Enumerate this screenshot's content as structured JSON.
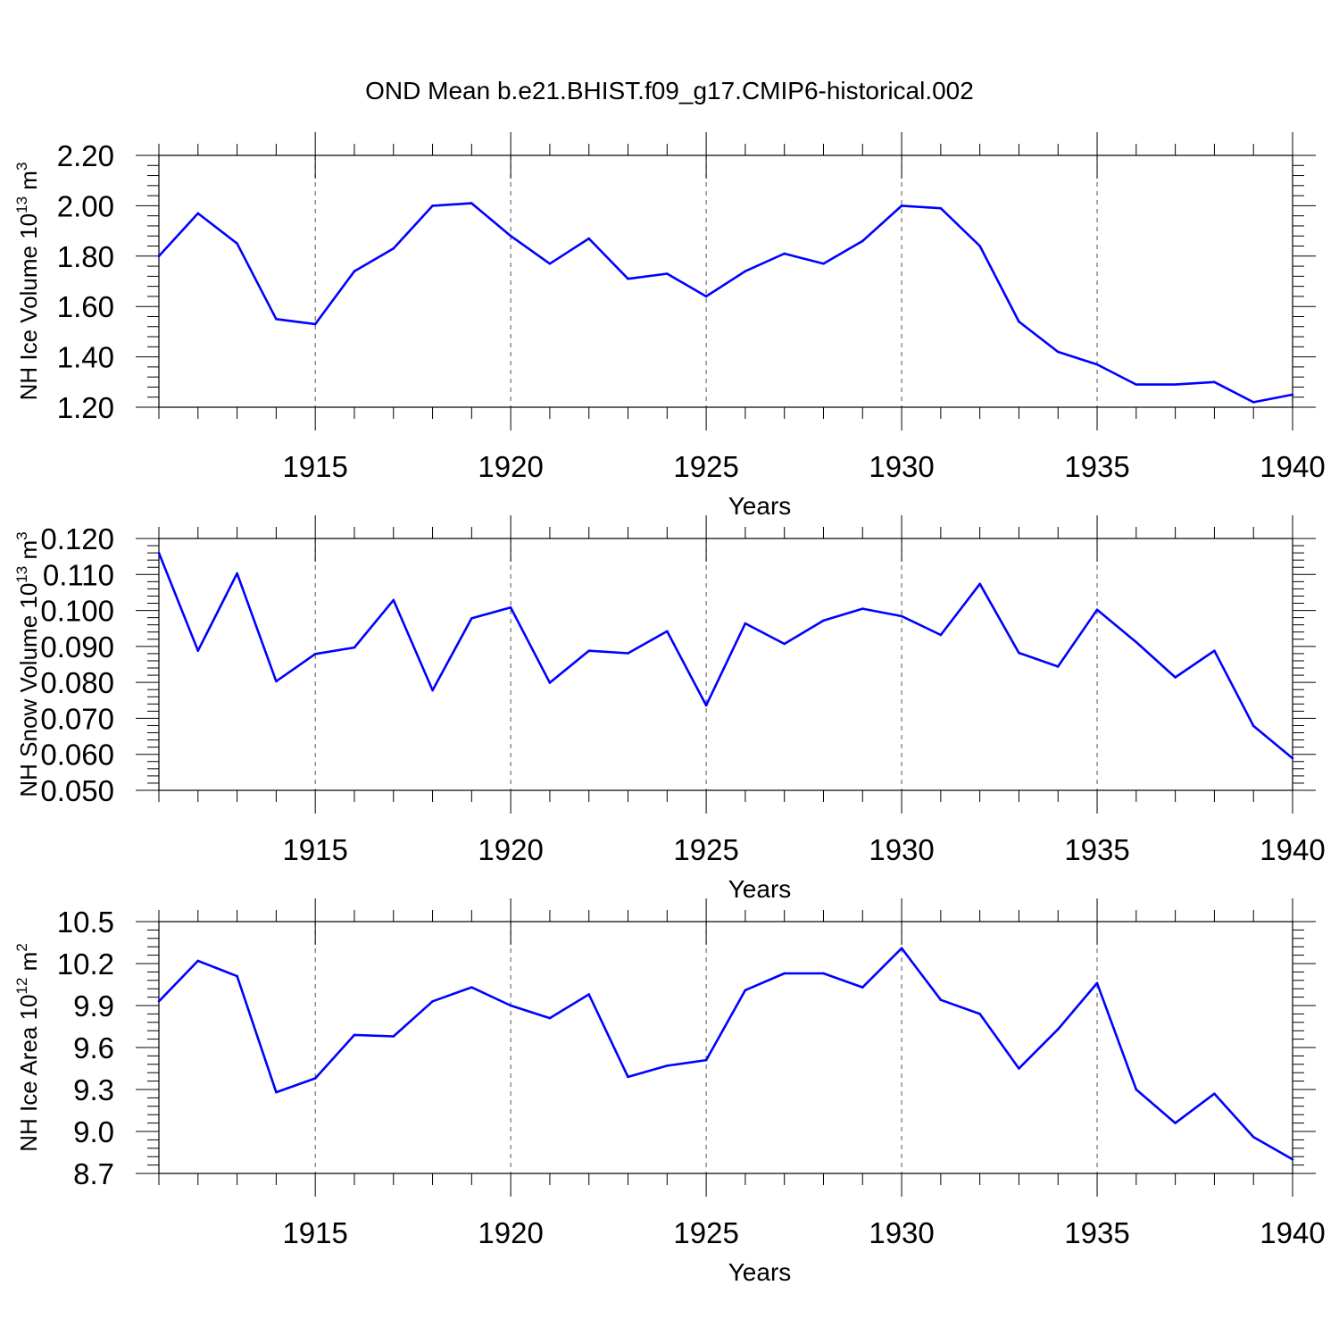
{
  "title": "OND Mean b.e21.BHIST.f09_g17.CMIP6-historical.002",
  "line_color": "#0000ff",
  "chart_data": [
    {
      "type": "line",
      "ylabel": "NH Ice Volume 10",
      "ylabel_exp": "13",
      "ylabel_unit": " m",
      "ylabel_unit_exp": "3",
      "xlabel": "Years",
      "xlim": [
        1911,
        1940
      ],
      "ylim": [
        1.2,
        2.2
      ],
      "yticks": [
        "1.20",
        "1.40",
        "1.60",
        "1.80",
        "2.00",
        "2.20"
      ],
      "xticks": [
        "1915",
        "1920",
        "1925",
        "1930",
        "1935",
        "1940"
      ],
      "x": [
        1911,
        1912,
        1913,
        1914,
        1915,
        1916,
        1917,
        1918,
        1919,
        1920,
        1921,
        1922,
        1923,
        1924,
        1925,
        1926,
        1927,
        1928,
        1929,
        1930,
        1931,
        1932,
        1933,
        1934,
        1935,
        1936,
        1937,
        1938,
        1939,
        1940
      ],
      "values": [
        1.8,
        1.97,
        1.85,
        1.55,
        1.53,
        1.74,
        1.83,
        2.0,
        2.01,
        1.88,
        1.77,
        1.87,
        1.71,
        1.73,
        1.64,
        1.74,
        1.81,
        1.77,
        1.86,
        2.0,
        1.99,
        1.84,
        1.54,
        1.42,
        1.37,
        1.29,
        1.29,
        1.3,
        1.22,
        1.25
      ]
    },
    {
      "type": "line",
      "ylabel": "NH Snow Volume 10",
      "ylabel_exp": "13",
      "ylabel_unit": " m",
      "ylabel_unit_exp": "3",
      "xlabel": "Years",
      "xlim": [
        1911,
        1940
      ],
      "ylim": [
        0.05,
        0.12
      ],
      "yticks": [
        "0.050",
        "0.060",
        "0.070",
        "0.080",
        "0.090",
        "0.100",
        "0.110",
        "0.120"
      ],
      "xticks": [
        "1915",
        "1920",
        "1925",
        "1930",
        "1935",
        "1940"
      ],
      "x": [
        1911,
        1912,
        1913,
        1914,
        1915,
        1916,
        1917,
        1918,
        1919,
        1920,
        1921,
        1922,
        1923,
        1924,
        1925,
        1926,
        1927,
        1928,
        1929,
        1930,
        1931,
        1932,
        1933,
        1934,
        1935,
        1936,
        1937,
        1938,
        1939,
        1940
      ],
      "values": [
        0.116,
        0.0888,
        0.1103,
        0.0803,
        0.0879,
        0.0897,
        0.1029,
        0.0778,
        0.0978,
        0.1008,
        0.0799,
        0.0888,
        0.0881,
        0.0942,
        0.0736,
        0.0964,
        0.0907,
        0.0972,
        0.1005,
        0.0984,
        0.0932,
        0.1074,
        0.0882,
        0.0844,
        0.1002,
        0.0912,
        0.0814,
        0.0888,
        0.0679,
        0.0589
      ]
    },
    {
      "type": "line",
      "ylabel": "NH Ice Area 10",
      "ylabel_exp": "12",
      "ylabel_unit": " m",
      "ylabel_unit_exp": "2",
      "xlabel": "Years",
      "xlim": [
        1911,
        1940
      ],
      "ylim": [
        8.7,
        10.5
      ],
      "yticks": [
        "8.7",
        "9.0",
        "9.3",
        "9.6",
        "9.9",
        "10.2",
        "10.5"
      ],
      "xticks": [
        "1915",
        "1920",
        "1925",
        "1930",
        "1935",
        "1940"
      ],
      "x": [
        1911,
        1912,
        1913,
        1914,
        1915,
        1916,
        1917,
        1918,
        1919,
        1920,
        1921,
        1922,
        1923,
        1924,
        1925,
        1926,
        1927,
        1928,
        1929,
        1930,
        1931,
        1932,
        1933,
        1934,
        1935,
        1936,
        1937,
        1938,
        1939,
        1940
      ],
      "values": [
        9.93,
        10.22,
        10.11,
        9.28,
        9.38,
        9.69,
        9.68,
        9.93,
        10.03,
        9.9,
        9.81,
        9.98,
        9.39,
        9.47,
        9.51,
        10.01,
        10.13,
        10.13,
        10.03,
        10.31,
        9.94,
        9.84,
        9.45,
        9.73,
        10.06,
        9.3,
        9.06,
        9.27,
        8.96,
        8.8
      ]
    }
  ]
}
